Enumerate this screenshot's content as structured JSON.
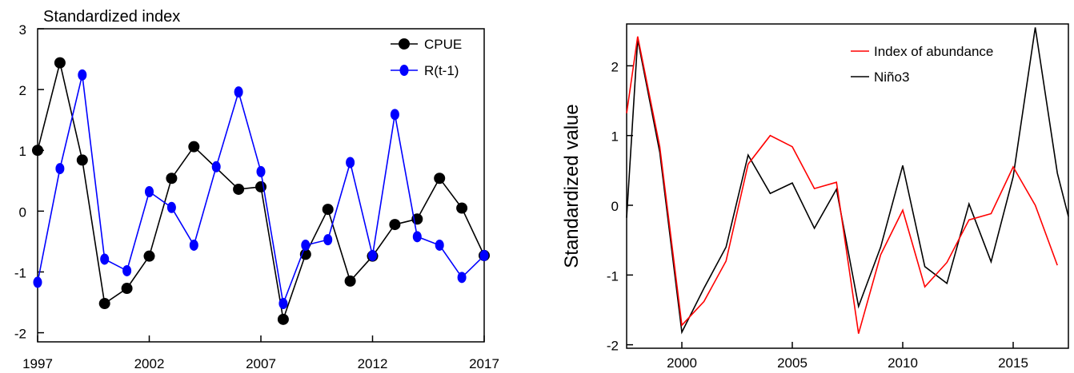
{
  "chart_data": [
    {
      "type": "line",
      "title": "Standardized index",
      "xlabel": "",
      "ylabel": "",
      "xlim": [
        1997,
        2017
      ],
      "ylim": [
        -2.15,
        3.0
      ],
      "xticks": [
        1997,
        2002,
        2007,
        2012,
        2017
      ],
      "yticks": [
        -2,
        -1,
        0,
        1,
        2,
        3
      ],
      "legend_position": "top-right",
      "x": [
        1997,
        1998,
        1999,
        2000,
        2001,
        2002,
        2003,
        2004,
        2005,
        2006,
        2007,
        2008,
        2009,
        2010,
        2011,
        2012,
        2013,
        2014,
        2015,
        2016,
        2017
      ],
      "series": [
        {
          "name": "CPUE",
          "color": "#000000",
          "marker_size": 7,
          "values": [
            1.0,
            2.44,
            0.84,
            -1.52,
            -1.27,
            -0.74,
            0.54,
            1.06,
            null,
            0.36,
            0.4,
            -1.78,
            -0.71,
            0.03,
            -1.15,
            -0.74,
            -0.22,
            -0.13,
            0.54,
            0.05,
            -0.73
          ]
        },
        {
          "name": "R(t-1)",
          "color": "#0000ff",
          "marker_size": 5.5,
          "values": [
            -1.17,
            0.7,
            2.24,
            -0.79,
            -0.98,
            0.32,
            0.06,
            -0.56,
            0.73,
            1.96,
            0.65,
            -1.52,
            -0.56,
            -0.47,
            0.8,
            -0.73,
            1.59,
            -0.42,
            -0.56,
            -1.09,
            -0.73
          ]
        }
      ]
    },
    {
      "type": "line",
      "title": "",
      "xlabel": "",
      "ylabel": "Standardized value",
      "xlim": [
        1997.5,
        2017.5
      ],
      "ylim": [
        -2.05,
        2.6
      ],
      "xticks": [
        2000,
        2005,
        2010,
        2015
      ],
      "yticks": [
        -2,
        -1,
        0,
        1,
        2
      ],
      "legend_position": "top-right",
      "series": [
        {
          "name": "Index of abundance",
          "color": "#ff0000",
          "x": [
            1997.5,
            1998,
            1999,
            2000,
            2001,
            2002,
            2003,
            2004,
            2005,
            2006,
            2007,
            2008,
            2009,
            2010,
            2011,
            2012,
            2013,
            2014,
            2015,
            2016,
            2017
          ],
          "values": [
            1.32,
            2.42,
            0.84,
            -1.72,
            -1.38,
            -0.8,
            0.59,
            1.0,
            0.84,
            0.24,
            0.33,
            -1.84,
            -0.71,
            -0.07,
            -1.17,
            -0.82,
            -0.21,
            -0.12,
            0.55,
            0.0,
            -0.86
          ]
        },
        {
          "name": "Niño3",
          "color": "#000000",
          "x": [
            1997.5,
            1998,
            1999,
            2000,
            2001,
            2002,
            2003,
            2004,
            2005,
            2006,
            2007,
            2008,
            2009,
            2010,
            2011,
            2012,
            2013,
            2014,
            2015,
            2016,
            2017,
            2017.5
          ],
          "values": [
            -0.18,
            2.38,
            0.76,
            -1.82,
            -1.19,
            -0.6,
            0.72,
            0.17,
            0.32,
            -0.33,
            0.23,
            -1.45,
            -0.6,
            0.57,
            -0.88,
            -1.12,
            0.02,
            -0.81,
            0.41,
            2.55,
            0.46,
            -0.16
          ]
        }
      ]
    }
  ]
}
